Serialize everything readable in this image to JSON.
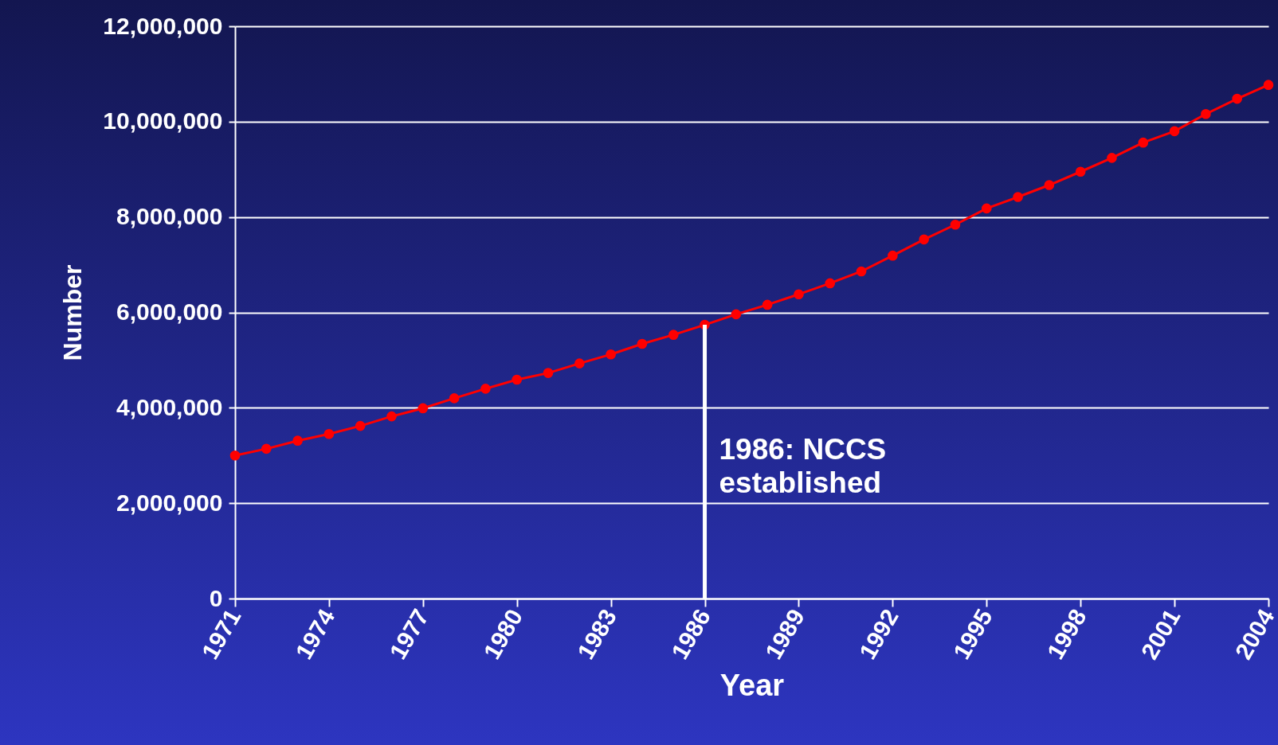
{
  "chart_data": {
    "type": "line",
    "xlabel": "Year",
    "ylabel": "Number",
    "x": [
      1971,
      1972,
      1973,
      1974,
      1975,
      1976,
      1977,
      1978,
      1979,
      1980,
      1981,
      1982,
      1983,
      1984,
      1985,
      1986,
      1987,
      1988,
      1989,
      1990,
      1991,
      1992,
      1993,
      1994,
      1995,
      1996,
      1997,
      1998,
      1999,
      2000,
      2001,
      2002,
      2003,
      2004
    ],
    "series": [
      {
        "color": "#ff0000",
        "values": [
          3000000,
          3140000,
          3310000,
          3450000,
          3620000,
          3820000,
          3990000,
          4200000,
          4400000,
          4590000,
          4730000,
          4930000,
          5120000,
          5340000,
          5530000,
          5740000,
          5960000,
          6160000,
          6380000,
          6610000,
          6860000,
          7190000,
          7530000,
          7840000,
          8180000,
          8420000,
          8670000,
          8950000,
          9240000,
          9560000,
          9800000,
          10160000,
          10480000,
          10770000
        ]
      }
    ],
    "xlim": [
      1971,
      2004
    ],
    "xticks": [
      1971,
      1974,
      1977,
      1980,
      1983,
      1986,
      1989,
      1992,
      1995,
      1998,
      2001,
      2004
    ],
    "ylim": [
      0,
      12000000
    ],
    "yticks": [
      0,
      {
        "value": 2000000,
        "label": "2,000,000"
      },
      {
        "value": 4000000,
        "label": "4,000,000"
      },
      {
        "value": 6000000,
        "label": "6,000,000"
      },
      {
        "value": 8000000,
        "label": "8,000,000"
      },
      {
        "value": 10000000,
        "label": "10,000,000"
      },
      {
        "value": 12000000,
        "label": "12,000,000"
      }
    ],
    "grid": "y",
    "marker": "circle",
    "line_style": "solid",
    "ref_lines": [
      {
        "axis": "x",
        "value": 1986,
        "label": "1986: NCCS established",
        "color": "#ffffff"
      }
    ]
  }
}
